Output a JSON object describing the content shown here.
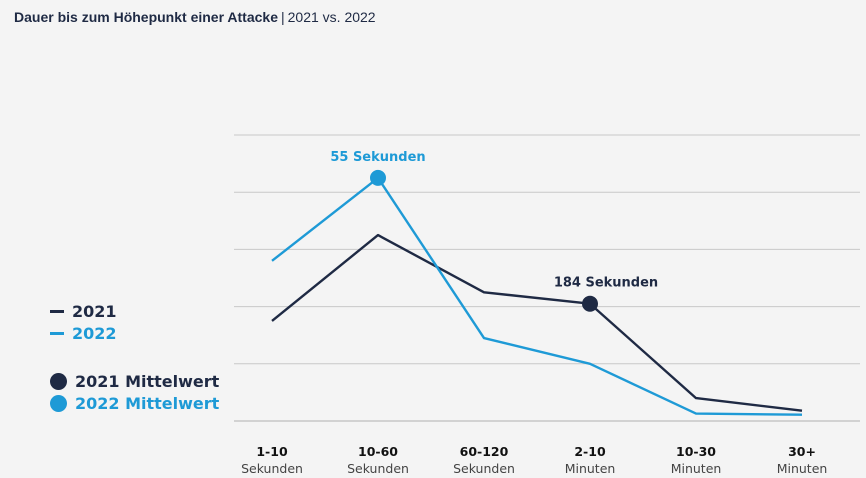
{
  "colors": {
    "series_2021": "#1f2a44",
    "series_2022": "#1e9ad6",
    "grid": "#c8c8c8",
    "background": "#f4f4f4"
  },
  "chart_data": {
    "type": "line",
    "title": "Dauer bis zum Höhepunkt einer Attacke",
    "subtitle": "2021 vs. 2022",
    "categories": [
      {
        "top": "1-10",
        "bottom": "Sekunden"
      },
      {
        "top": "10-60",
        "bottom": "Sekunden"
      },
      {
        "top": "60-120",
        "bottom": "Sekunden"
      },
      {
        "top": "2-10",
        "bottom": "Minuten"
      },
      {
        "top": "10-30",
        "bottom": "Minuten"
      },
      {
        "top": "30+",
        "bottom": "Minuten"
      }
    ],
    "ylim": [
      0,
      50
    ],
    "y_gridlines": [
      0,
      10,
      20,
      30,
      40,
      50
    ],
    "series": [
      {
        "name": "2021",
        "values": [
          17.5,
          32.5,
          22.5,
          20.5,
          4,
          1.8
        ]
      },
      {
        "name": "2022",
        "values": [
          28,
          42.5,
          14.5,
          10,
          1.3,
          1.1
        ]
      }
    ],
    "annotations": [
      {
        "series": "2022",
        "index": 1,
        "label": "55 Sekunden",
        "legend": "2022 Mittelwert"
      },
      {
        "series": "2021",
        "index": 3,
        "label": "184 Sekunden",
        "legend": "2021 Mittelwert"
      }
    ],
    "legend": [
      "2021",
      "2022",
      "2021 Mittelwert",
      "2022 Mittelwert"
    ],
    "legend_position": "left"
  }
}
